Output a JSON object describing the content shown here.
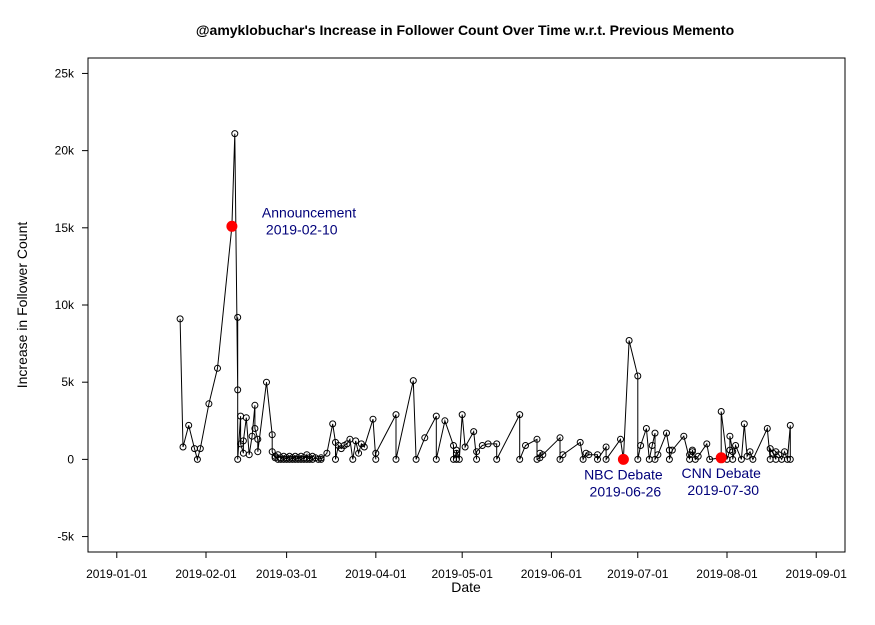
{
  "chart_data": {
    "type": "line",
    "title": "@amyklobuchar's Increase in Follower Count Over Time w.r.t. Previous Memento",
    "xlabel": "Date",
    "ylabel": "Increase in Follower Count",
    "xlim": [
      "2018-12-22",
      "2019-09-11"
    ],
    "ylim": [
      -6000,
      26000
    ],
    "x_ticks": [
      "2019-01-01",
      "2019-02-01",
      "2019-03-01",
      "2019-04-01",
      "2019-05-01",
      "2019-06-01",
      "2019-07-01",
      "2019-08-01",
      "2019-09-01"
    ],
    "y_ticks": [
      {
        "value": -5000,
        "label": "-5k"
      },
      {
        "value": 0,
        "label": "0"
      },
      {
        "value": 5000,
        "label": "5k"
      },
      {
        "value": 10000,
        "label": "10k"
      },
      {
        "value": 15000,
        "label": "15k"
      },
      {
        "value": 20000,
        "label": "20k"
      },
      {
        "value": 25000,
        "label": "25k"
      }
    ],
    "series": [
      {
        "marker": "open-circle",
        "color": "#000000",
        "points": [
          [
            "2019-01-23",
            9100
          ],
          [
            "2019-01-24",
            800
          ],
          [
            "2019-01-26",
            2200
          ],
          [
            "2019-01-28",
            700
          ],
          [
            "2019-01-29",
            0
          ],
          [
            "2019-01-30",
            700
          ],
          [
            "2019-02-02",
            3600
          ],
          [
            "2019-02-05",
            5900
          ],
          [
            "2019-02-10",
            15100
          ],
          [
            "2019-02-11",
            21100
          ],
          [
            "2019-02-12",
            4500
          ],
          [
            "2019-02-12",
            9200
          ],
          [
            "2019-02-12",
            0
          ],
          [
            "2019-02-13",
            2800
          ],
          [
            "2019-02-13",
            1000
          ],
          [
            "2019-02-14",
            400
          ],
          [
            "2019-02-14",
            1200
          ],
          [
            "2019-02-15",
            2700
          ],
          [
            "2019-02-16",
            300
          ],
          [
            "2019-02-17",
            1500
          ],
          [
            "2019-02-18",
            3500
          ],
          [
            "2019-02-18",
            2000
          ],
          [
            "2019-02-19",
            1300
          ],
          [
            "2019-02-19",
            500
          ],
          [
            "2019-02-22",
            5000
          ],
          [
            "2019-02-24",
            1600
          ],
          [
            "2019-02-24",
            500
          ],
          [
            "2019-02-25",
            100
          ],
          [
            "2019-02-25",
            200
          ],
          [
            "2019-02-26",
            0
          ],
          [
            "2019-02-26",
            300
          ],
          [
            "2019-02-27",
            100
          ],
          [
            "2019-02-27",
            0
          ],
          [
            "2019-02-28",
            200
          ],
          [
            "2019-02-28",
            0
          ],
          [
            "2019-03-01",
            100
          ],
          [
            "2019-03-01",
            0
          ],
          [
            "2019-03-02",
            200
          ],
          [
            "2019-03-02",
            0
          ],
          [
            "2019-03-03",
            100
          ],
          [
            "2019-03-03",
            0
          ],
          [
            "2019-03-04",
            200
          ],
          [
            "2019-03-04",
            0
          ],
          [
            "2019-03-05",
            100
          ],
          [
            "2019-03-05",
            0
          ],
          [
            "2019-03-06",
            200
          ],
          [
            "2019-03-06",
            0
          ],
          [
            "2019-03-07",
            100
          ],
          [
            "2019-03-07",
            0
          ],
          [
            "2019-03-08",
            300
          ],
          [
            "2019-03-08",
            0
          ],
          [
            "2019-03-09",
            100
          ],
          [
            "2019-03-09",
            0
          ],
          [
            "2019-03-10",
            200
          ],
          [
            "2019-03-10",
            0
          ],
          [
            "2019-03-11",
            100
          ],
          [
            "2019-03-12",
            0
          ],
          [
            "2019-03-13",
            100
          ],
          [
            "2019-03-13",
            0
          ],
          [
            "2019-03-15",
            400
          ],
          [
            "2019-03-17",
            2300
          ],
          [
            "2019-03-18",
            1100
          ],
          [
            "2019-03-18",
            0
          ],
          [
            "2019-03-19",
            900
          ],
          [
            "2019-03-20",
            700
          ],
          [
            "2019-03-21",
            900
          ],
          [
            "2019-03-22",
            1000
          ],
          [
            "2019-03-23",
            1300
          ],
          [
            "2019-03-24",
            0
          ],
          [
            "2019-03-25",
            1200
          ],
          [
            "2019-03-26",
            400
          ],
          [
            "2019-03-27",
            1000
          ],
          [
            "2019-03-28",
            800
          ],
          [
            "2019-03-31",
            2600
          ],
          [
            "2019-04-01",
            0
          ],
          [
            "2019-04-01",
            400
          ],
          [
            "2019-04-08",
            2900
          ],
          [
            "2019-04-08",
            0
          ],
          [
            "2019-04-14",
            5100
          ],
          [
            "2019-04-15",
            0
          ],
          [
            "2019-04-18",
            1400
          ],
          [
            "2019-04-22",
            2800
          ],
          [
            "2019-04-22",
            0
          ],
          [
            "2019-04-25",
            2500
          ],
          [
            "2019-04-28",
            900
          ],
          [
            "2019-04-28",
            0
          ],
          [
            "2019-04-29",
            400
          ],
          [
            "2019-04-29",
            0
          ],
          [
            "2019-04-29",
            600
          ],
          [
            "2019-04-30",
            0
          ],
          [
            "2019-05-01",
            2900
          ],
          [
            "2019-05-02",
            800
          ],
          [
            "2019-05-05",
            1800
          ],
          [
            "2019-05-06",
            0
          ],
          [
            "2019-05-06",
            500
          ],
          [
            "2019-05-08",
            900
          ],
          [
            "2019-05-10",
            1000
          ],
          [
            "2019-05-13",
            1000
          ],
          [
            "2019-05-13",
            0
          ],
          [
            "2019-05-21",
            2900
          ],
          [
            "2019-05-21",
            0
          ],
          [
            "2019-05-23",
            900
          ],
          [
            "2019-05-27",
            1300
          ],
          [
            "2019-05-27",
            0
          ],
          [
            "2019-05-28",
            100
          ],
          [
            "2019-05-28",
            400
          ],
          [
            "2019-05-29",
            300
          ],
          [
            "2019-06-04",
            1400
          ],
          [
            "2019-06-04",
            0
          ],
          [
            "2019-06-05",
            300
          ],
          [
            "2019-06-11",
            1100
          ],
          [
            "2019-06-12",
            0
          ],
          [
            "2019-06-13",
            400
          ],
          [
            "2019-06-14",
            300
          ],
          [
            "2019-06-17",
            300
          ],
          [
            "2019-06-17",
            0
          ],
          [
            "2019-06-20",
            800
          ],
          [
            "2019-06-20",
            0
          ],
          [
            "2019-06-25",
            1300
          ],
          [
            "2019-06-26",
            0
          ],
          [
            "2019-06-28",
            7700
          ],
          [
            "2019-07-01",
            5400
          ],
          [
            "2019-07-01",
            0
          ],
          [
            "2019-07-02",
            900
          ],
          [
            "2019-07-04",
            2000
          ],
          [
            "2019-07-05",
            0
          ],
          [
            "2019-07-06",
            900
          ],
          [
            "2019-07-07",
            1700
          ],
          [
            "2019-07-07",
            0
          ],
          [
            "2019-07-08",
            300
          ],
          [
            "2019-07-11",
            1700
          ],
          [
            "2019-07-12",
            600
          ],
          [
            "2019-07-12",
            0
          ],
          [
            "2019-07-13",
            600
          ],
          [
            "2019-07-17",
            1500
          ],
          [
            "2019-07-19",
            0
          ],
          [
            "2019-07-19",
            300
          ],
          [
            "2019-07-20",
            500
          ],
          [
            "2019-07-20",
            600
          ],
          [
            "2019-07-21",
            0
          ],
          [
            "2019-07-22",
            200
          ],
          [
            "2019-07-25",
            1000
          ],
          [
            "2019-07-26",
            0
          ],
          [
            "2019-07-30",
            100
          ],
          [
            "2019-07-30",
            3100
          ],
          [
            "2019-08-01",
            0
          ],
          [
            "2019-08-02",
            600
          ],
          [
            "2019-08-02",
            1500
          ],
          [
            "2019-08-03",
            500
          ],
          [
            "2019-08-03",
            0
          ],
          [
            "2019-08-04",
            900
          ],
          [
            "2019-08-06",
            0
          ],
          [
            "2019-08-07",
            2300
          ],
          [
            "2019-08-08",
            200
          ],
          [
            "2019-08-09",
            500
          ],
          [
            "2019-08-10",
            0
          ],
          [
            "2019-08-15",
            2000
          ],
          [
            "2019-08-16",
            0
          ],
          [
            "2019-08-16",
            700
          ],
          [
            "2019-08-17",
            400
          ],
          [
            "2019-08-18",
            0
          ],
          [
            "2019-08-18",
            500
          ],
          [
            "2019-08-19",
            300
          ],
          [
            "2019-08-20",
            0
          ],
          [
            "2019-08-21",
            500
          ],
          [
            "2019-08-22",
            0
          ],
          [
            "2019-08-23",
            2200
          ],
          [
            "2019-08-23",
            0
          ]
        ]
      }
    ],
    "highlights": [
      {
        "date": "2019-02-10",
        "value": 15100,
        "color": "#ff0000",
        "label": "Announcement",
        "sublabel": "2019-02-10",
        "label_side": "right-above"
      },
      {
        "date": "2019-06-26",
        "value": 0,
        "color": "#ff0000",
        "label": "NBC Debate",
        "sublabel": "2019-06-26",
        "label_side": "below"
      },
      {
        "date": "2019-07-30",
        "value": 100,
        "color": "#ff0000",
        "label": "CNN Debate",
        "sublabel": "2019-07-30",
        "label_side": "below"
      }
    ],
    "annotation_color": "#00007a",
    "grid": false,
    "legend": "none"
  }
}
